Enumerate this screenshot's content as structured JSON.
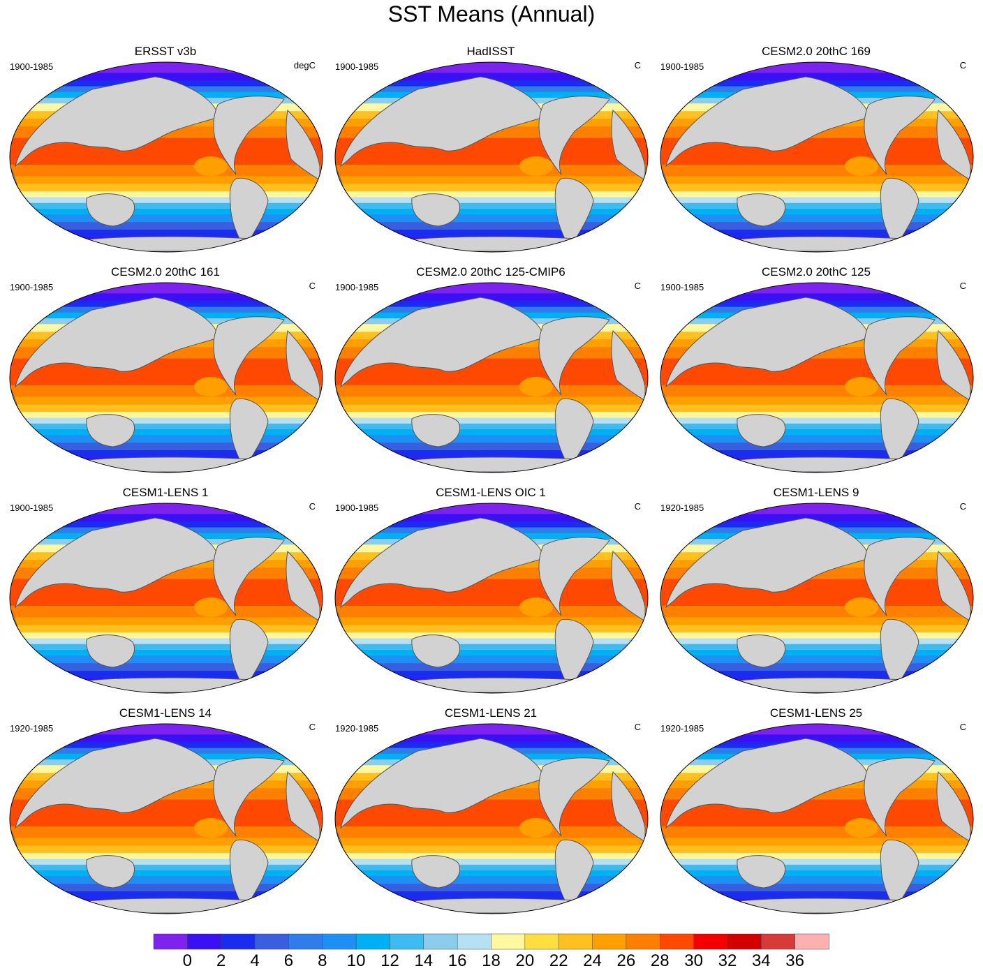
{
  "title": "SST Means (Annual)",
  "panels": [
    {
      "title": "ERSST v3b",
      "period": "1900-1985",
      "units": "degC"
    },
    {
      "title": "HadISST",
      "period": "1900-1985",
      "units": "C"
    },
    {
      "title": "CESM2.0 20thC 169",
      "period": "1900-1985",
      "units": "C"
    },
    {
      "title": "CESM2.0 20thC 161",
      "period": "1900-1985",
      "units": "C"
    },
    {
      "title": "CESM2.0 20thC 125-CMIP6",
      "period": "1900-1985",
      "units": "C"
    },
    {
      "title": "CESM2.0 20thC 125",
      "period": "1900-1985",
      "units": "C"
    },
    {
      "title": "CESM1-LENS 1",
      "period": "1900-1985",
      "units": "C"
    },
    {
      "title": "CESM1-LENS OIC 1",
      "period": "1900-1985",
      "units": "C"
    },
    {
      "title": "CESM1-LENS 9",
      "period": "1920-1985",
      "units": "C"
    },
    {
      "title": "CESM1-LENS 14",
      "period": "1920-1985",
      "units": "C"
    },
    {
      "title": "CESM1-LENS 21",
      "period": "1920-1985",
      "units": "C"
    },
    {
      "title": "CESM1-LENS 25",
      "period": "1920-1985",
      "units": "C"
    }
  ],
  "colorbar": {
    "labels": [
      "0",
      "2",
      "4",
      "6",
      "8",
      "10",
      "12",
      "14",
      "16",
      "18",
      "20",
      "22",
      "24",
      "26",
      "28",
      "30",
      "32",
      "34",
      "36"
    ],
    "colors": [
      "#7e22f0",
      "#3a10f5",
      "#1a2cf0",
      "#3a5ee0",
      "#2f7de8",
      "#1e90f5",
      "#00b0f5",
      "#3cbcf0",
      "#8ccdee",
      "#b8e0f4",
      "#fff8a0",
      "#ffdf40",
      "#ffc020",
      "#ffa000",
      "#ff7f00",
      "#ff4800",
      "#f50000",
      "#d40000",
      "#d83a3a",
      "#fdb0b0"
    ]
  },
  "map_style": {
    "land_color": "#d2d2d2",
    "coast_color": "#555555"
  }
}
